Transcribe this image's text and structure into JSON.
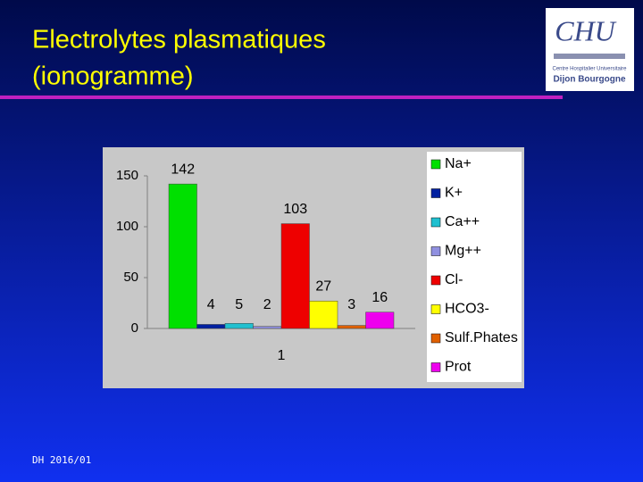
{
  "slide": {
    "title": [
      "Electrolytes plasmatiques",
      "(ionogramme)"
    ],
    "footer": "DH 2016/01",
    "logo": {
      "name": "CHU",
      "line1": "Centre Hospitalier Universitaire",
      "line2": "Dijon Bourgogne"
    }
  },
  "chart_data": {
    "type": "bar",
    "categories": [
      "1"
    ],
    "series": [
      {
        "name": "Na+",
        "color": "#00e000",
        "values": [
          142
        ]
      },
      {
        "name": "K+",
        "color": "#0020a0",
        "values": [
          4
        ]
      },
      {
        "name": "Ca++",
        "color": "#20c0d0",
        "values": [
          5
        ]
      },
      {
        "name": "Mg++",
        "color": "#9090e0",
        "values": [
          2
        ]
      },
      {
        "name": "Cl-",
        "color": "#ee0000",
        "values": [
          103
        ]
      },
      {
        "name": "HCO3-",
        "color": "#ffff00",
        "values": [
          27
        ]
      },
      {
        "name": "Sulf.Phates",
        "color": "#e06000",
        "values": [
          3
        ]
      },
      {
        "name": "Prot",
        "color": "#ee00ee",
        "values": [
          16
        ]
      }
    ],
    "ylim": [
      0,
      150
    ],
    "yticks": [
      0,
      50,
      100,
      150
    ],
    "legend": "right"
  }
}
